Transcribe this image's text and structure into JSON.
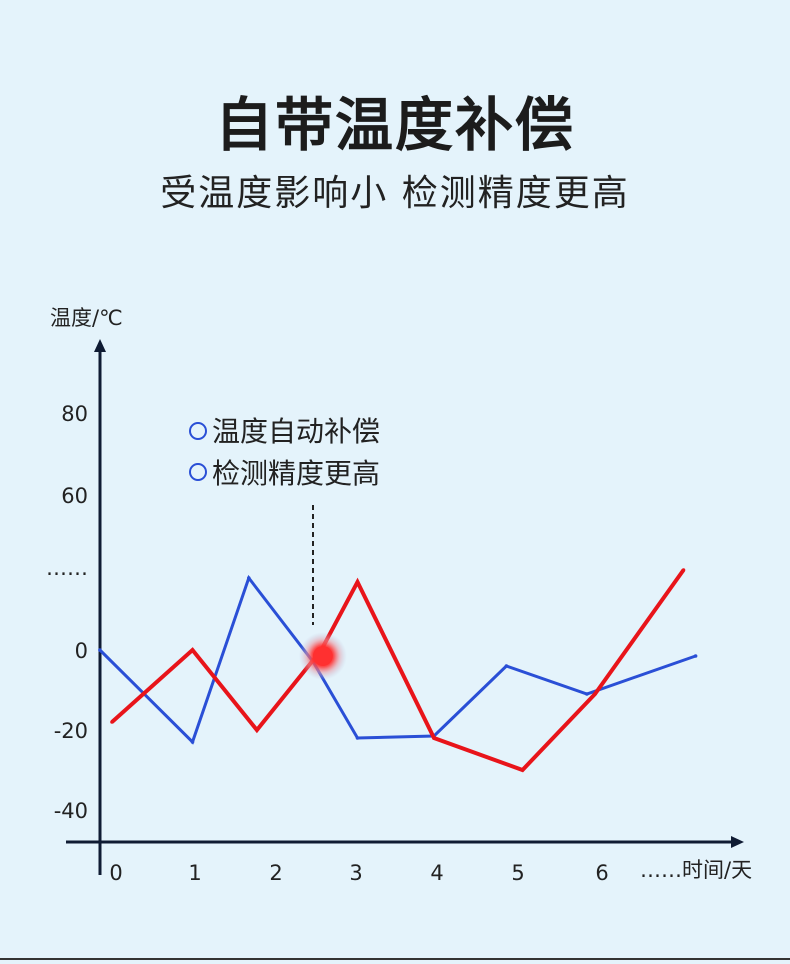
{
  "header": {
    "title": "自带温度补偿",
    "subtitle": "受温度影响小 检测精度更高"
  },
  "chart_data": {
    "type": "line",
    "ylabel": "温度/℃",
    "xlabel": "……时间/天",
    "x_ticks": [
      "0",
      "1",
      "2",
      "3",
      "4",
      "5",
      "6"
    ],
    "y_ticks": [
      "80",
      "60",
      "……",
      "0",
      "-20",
      "-40"
    ],
    "legend": [
      "温度自动补偿",
      "检测精度更高"
    ],
    "colors": {
      "blue": "#2a4fd6",
      "red": "#e8141a",
      "marker": "#ff3030"
    },
    "series": [
      {
        "color": "blue",
        "points": [
          [
            -0.2,
            0
          ],
          [
            0.95,
            -23
          ],
          [
            1.65,
            18
          ],
          [
            2.45,
            -3
          ],
          [
            3.0,
            -22
          ],
          [
            3.95,
            -21.5
          ],
          [
            4.85,
            -4
          ],
          [
            5.85,
            -11
          ],
          [
            7.2,
            -1.5
          ]
        ]
      },
      {
        "color": "red",
        "points": [
          [
            -0.05,
            -18
          ],
          [
            0.95,
            0
          ],
          [
            1.75,
            -20
          ],
          [
            2.55,
            0
          ],
          [
            3.0,
            17
          ],
          [
            3.95,
            -22
          ],
          [
            5.05,
            -30
          ],
          [
            5.95,
            -11
          ],
          [
            7.05,
            20
          ]
        ]
      }
    ],
    "highlight_point": [
      2.57,
      0
    ]
  }
}
